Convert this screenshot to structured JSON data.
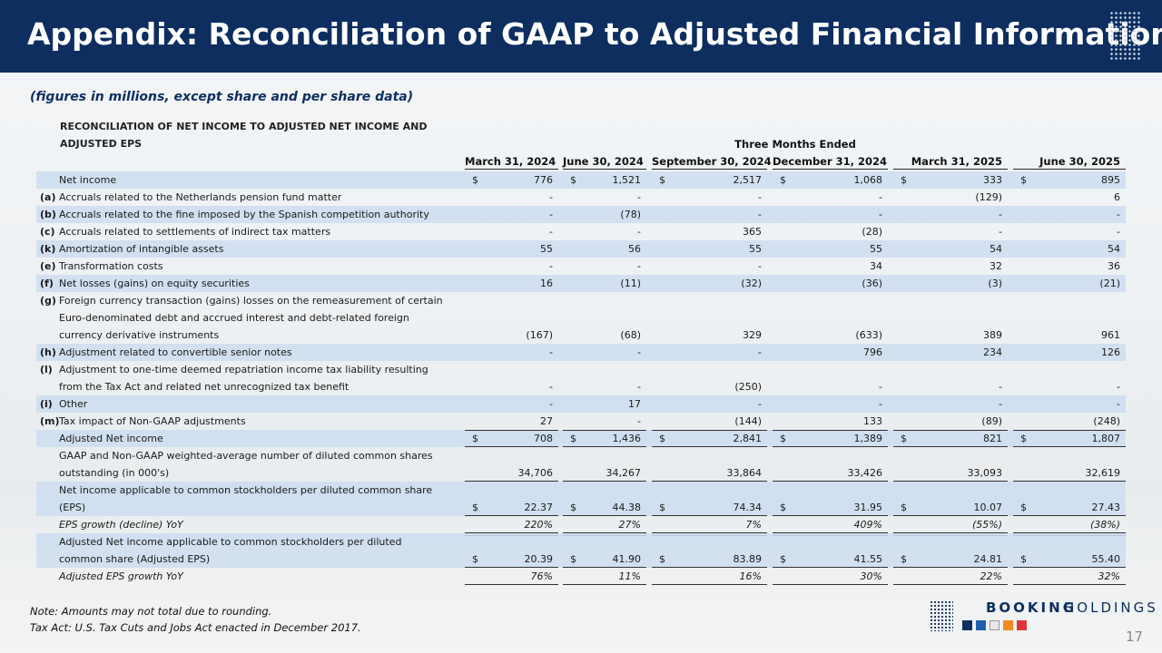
{
  "header": {
    "title": "Appendix: Reconciliation of GAAP to Adjusted Financial Information"
  },
  "subtitle": "(figures in millions, except share and per share data)",
  "table": {
    "heading": [
      "RECONCILIATION OF NET INCOME TO ADJUSTED NET INCOME AND",
      "ADJUSTED EPS"
    ],
    "group_header": "Three Months Ended",
    "columns": [
      "March 31, 2024",
      "June 30, 2024",
      "September 30, 2024",
      "December 31, 2024",
      "March 31, 2025",
      "June 30, 2025"
    ],
    "rows": [
      {
        "label": [
          "Net income"
        ],
        "currency": "$",
        "cells": [
          "776",
          "1,521",
          "2,517",
          "1,068",
          "333",
          "895"
        ],
        "shaded": true
      },
      {
        "key": "(a)",
        "label": [
          "Accruals related to the Netherlands pension fund matter"
        ],
        "cells": [
          "-",
          "-",
          "-",
          "-",
          "(129)",
          "6"
        ]
      },
      {
        "key": "(b)",
        "label": [
          "Accruals related to the fine imposed by the Spanish competition authority"
        ],
        "cells": [
          "-",
          "(78)",
          "-",
          "-",
          "-",
          "-"
        ],
        "shaded": true
      },
      {
        "key": "(c)",
        "label": [
          "Accruals related to settlements of indirect tax matters"
        ],
        "cells": [
          "-",
          "-",
          "365",
          "(28)",
          "-",
          "-"
        ]
      },
      {
        "key": "(k)",
        "label": [
          "Amortization of intangible assets"
        ],
        "cells": [
          "55",
          "56",
          "55",
          "55",
          "54",
          "54"
        ],
        "shaded": true
      },
      {
        "key": "(e)",
        "label": [
          "Transformation costs"
        ],
        "cells": [
          "-",
          "-",
          "-",
          "34",
          "32",
          "36"
        ]
      },
      {
        "key": "(f)",
        "label": [
          "Net losses (gains) on equity securities"
        ],
        "cells": [
          "16",
          "(11)",
          "(32)",
          "(36)",
          "(3)",
          "(21)"
        ],
        "shaded": true
      },
      {
        "key": "(g)",
        "label": [
          "Foreign currency transaction (gains) losses on the remeasurement of certain",
          "Euro-denominated debt and accrued interest and debt-related foreign",
          "currency derivative instruments"
        ],
        "cells": [
          "(167)",
          "(68)",
          "329",
          "(633)",
          "389",
          "961"
        ]
      },
      {
        "key": "(h)",
        "label": [
          "Adjustment related to convertible senior notes"
        ],
        "cells": [
          "-",
          "-",
          "-",
          "796",
          "234",
          "126"
        ],
        "shaded": true
      },
      {
        "key": "(l)",
        "label": [
          "Adjustment to one-time deemed repatriation income tax liability resulting",
          "from the Tax Act and related net unrecognized tax benefit"
        ],
        "cells": [
          "-",
          "-",
          "(250)",
          "-",
          "-",
          "-"
        ]
      },
      {
        "key": "(i)",
        "label": [
          "Other"
        ],
        "cells": [
          "-",
          "17",
          "-",
          "-",
          "-",
          "-"
        ],
        "shaded": true
      },
      {
        "key": "(m)",
        "label": [
          "Tax impact of Non-GAAP adjustments"
        ],
        "cells": [
          "27",
          "-",
          "(144)",
          "133",
          "(89)",
          "(248)"
        ]
      },
      {
        "label": [
          "Adjusted Net income"
        ],
        "currency": "$",
        "cells": [
          "708",
          "1,436",
          "2,841",
          "1,389",
          "821",
          "1,807"
        ],
        "shaded": true,
        "rule_above": true,
        "rule_below": true
      },
      {
        "label": [
          "GAAP and Non-GAAP weighted-average number of diluted common shares",
          "outstanding (in 000's)"
        ],
        "cells": [
          "34,706",
          "34,267",
          "33,864",
          "33,426",
          "33,093",
          "32,619"
        ],
        "rule_below": true
      },
      {
        "label": [
          "Net income applicable to common stockholders per diluted common share",
          "(EPS)"
        ],
        "currency": "$",
        "cells": [
          "22.37",
          "44.38",
          "74.34",
          "31.95",
          "10.07",
          "27.43"
        ],
        "shaded": true,
        "rule_below": true
      },
      {
        "label": [
          "EPS growth (decline) YoY"
        ],
        "cells": [
          "220%",
          "27%",
          "7%",
          "409%",
          "(55%)",
          "(38%)"
        ],
        "italic": true,
        "rule_below": true,
        "double_rule": true
      },
      {
        "label": [
          "Adjusted Net income applicable to common stockholders per diluted",
          "common share (Adjusted EPS)"
        ],
        "currency": "$",
        "cells": [
          "20.39",
          "41.90",
          "83.89",
          "41.55",
          "24.81",
          "55.40"
        ],
        "shaded": true,
        "rule_below": true
      },
      {
        "label": [
          "Adjusted EPS growth YoY"
        ],
        "cells": [
          "76%",
          "11%",
          "16%",
          "30%",
          "22%",
          "32%"
        ],
        "italic": true,
        "rule_below": true
      }
    ]
  },
  "notes": [
    "Note: Amounts may not total due to rounding.",
    "Tax Act: U.S. Tax Cuts and Jobs Act enacted in December 2017."
  ],
  "logo": {
    "word1": "BOOKING",
    "word2": "HOLDINGS"
  },
  "page_number": "17"
}
